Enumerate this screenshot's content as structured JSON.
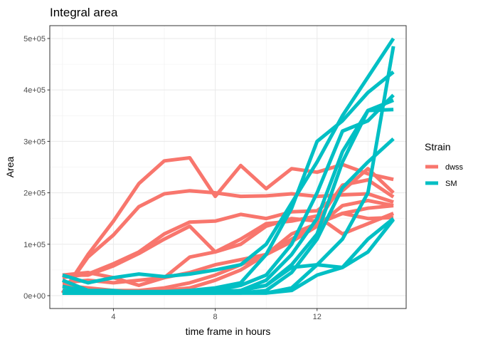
{
  "chart_data": {
    "type": "line",
    "title": "Integral area",
    "xlabel": "time frame in hours",
    "ylabel": "Area",
    "xlim": [
      1.5,
      15.5
    ],
    "ylim": [
      -25000,
      525000
    ],
    "x_ticks": [
      4,
      8,
      12
    ],
    "x_tick_labels": [
      "4",
      "8",
      "12"
    ],
    "y_ticks": [
      0,
      100000,
      200000,
      300000,
      400000,
      500000
    ],
    "y_tick_labels": [
      "0e+00",
      "1e+05",
      "2e+05",
      "3e+05",
      "4e+05",
      "5e+05"
    ],
    "grid": true,
    "legend": {
      "title": "Strain",
      "position": "right",
      "entries": [
        {
          "label": "dwss",
          "color": "#F8766D"
        },
        {
          "label": "SM",
          "color": "#00BFC4"
        }
      ]
    },
    "x": [
      2,
      3,
      4,
      5,
      6,
      7,
      8,
      9,
      10,
      11,
      12,
      13,
      14,
      15
    ],
    "series": [
      {
        "group": "dwss",
        "values": [
          5000,
          80000,
          145000,
          218000,
          262000,
          268000,
          193000,
          253000,
          208000,
          247000,
          240000,
          255000,
          237000,
          226000
        ]
      },
      {
        "group": "dwss",
        "values": [
          5000,
          75000,
          118000,
          173000,
          198000,
          204000,
          200000,
          193000,
          194000,
          198000,
          193000,
          196000,
          198000,
          182000
        ]
      },
      {
        "group": "dwss",
        "values": [
          35000,
          42000,
          62000,
          85000,
          120000,
          143000,
          145000,
          158000,
          150000,
          163000,
          165000,
          204000,
          247000,
          200000
        ]
      },
      {
        "group": "dwss",
        "values": [
          40000,
          40000,
          58000,
          82000,
          110000,
          135000,
          85000,
          110000,
          140000,
          145000,
          155000,
          120000,
          140000,
          160000
        ]
      },
      {
        "group": "dwss",
        "values": [
          40000,
          45000,
          35000,
          20000,
          35000,
          75000,
          85000,
          100000,
          135000,
          150000,
          145000,
          215000,
          225000,
          192000
        ]
      },
      {
        "group": "dwss",
        "values": [
          25000,
          30000,
          25000,
          30000,
          35000,
          45000,
          60000,
          70000,
          80000,
          105000,
          135000,
          175000,
          185000,
          175000
        ]
      },
      {
        "group": "dwss",
        "values": [
          20000,
          15000,
          10000,
          10000,
          15000,
          25000,
          40000,
          60000,
          80000,
          110000,
          140000,
          160000,
          170000,
          175000
        ]
      },
      {
        "group": "dwss",
        "values": [
          5000,
          5000,
          5000,
          5000,
          10000,
          15000,
          30000,
          50000,
          80000,
          120000,
          140000,
          160000,
          150000,
          152000
        ]
      },
      {
        "group": "SM",
        "values": [
          40000,
          25000,
          35000,
          42000,
          37000,
          42000,
          50000,
          60000,
          100000,
          180000,
          260000,
          350000,
          425000,
          500000
        ]
      },
      {
        "group": "SM",
        "values": [
          18000,
          8000,
          8000,
          8000,
          8000,
          10000,
          15000,
          25000,
          80000,
          170000,
          300000,
          340000,
          395000,
          435000
        ]
      },
      {
        "group": "SM",
        "values": [
          5000,
          5000,
          5000,
          5000,
          5000,
          5000,
          10000,
          20000,
          40000,
          100000,
          200000,
          320000,
          340000,
          390000
        ]
      },
      {
        "group": "SM",
        "values": [
          5000,
          5000,
          5000,
          5000,
          5000,
          5000,
          5000,
          10000,
          30000,
          80000,
          150000,
          280000,
          360000,
          380000
        ]
      },
      {
        "group": "SM",
        "values": [
          30000,
          10000,
          10000,
          5000,
          5000,
          5000,
          5000,
          10000,
          20000,
          60000,
          120000,
          260000,
          360000,
          362000
        ]
      },
      {
        "group": "SM",
        "values": [
          10000,
          5000,
          5000,
          5000,
          5000,
          5000,
          5000,
          5000,
          10000,
          45000,
          110000,
          210000,
          260000,
          305000
        ]
      },
      {
        "group": "SM",
        "values": [
          5000,
          5000,
          5000,
          5000,
          5000,
          5000,
          5000,
          5000,
          5000,
          15000,
          60000,
          110000,
          200000,
          485000
        ]
      },
      {
        "group": "SM",
        "values": [
          5000,
          5000,
          5000,
          5000,
          5000,
          5000,
          8000,
          10000,
          20000,
          55000,
          60000,
          55000,
          110000,
          150000
        ]
      },
      {
        "group": "SM",
        "values": [
          5000,
          5000,
          5000,
          5000,
          5000,
          5000,
          5000,
          5000,
          5000,
          10000,
          40000,
          55000,
          85000,
          148000
        ]
      }
    ]
  }
}
